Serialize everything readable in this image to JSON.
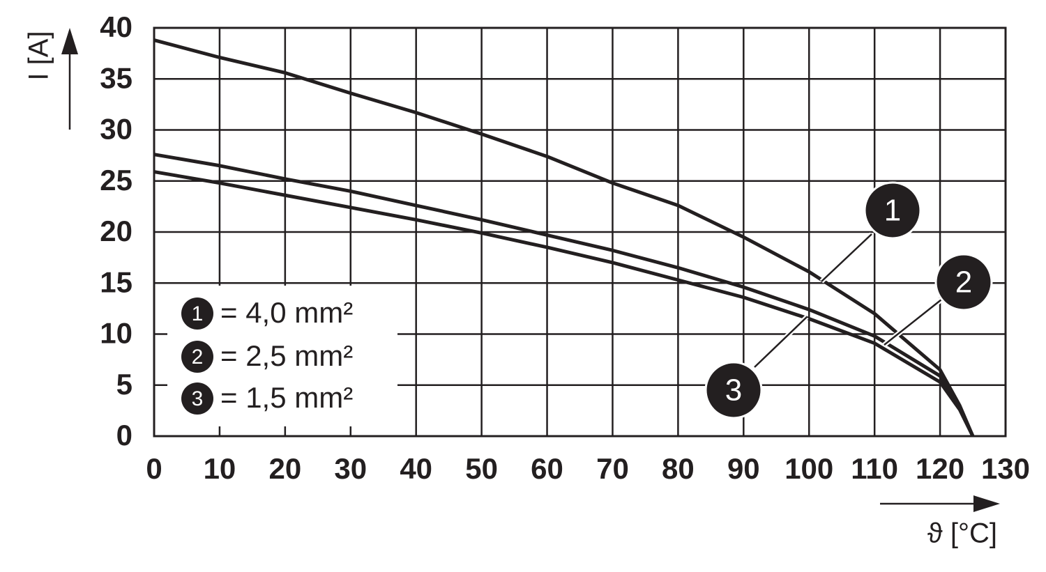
{
  "chart_data": {
    "type": "line",
    "x_label": "ϑ [°C]",
    "y_label": "I [A]",
    "x": [
      0,
      10,
      20,
      30,
      40,
      50,
      60,
      70,
      80,
      90,
      100,
      110,
      120,
      123,
      125
    ],
    "series": [
      {
        "name": "1",
        "label": "= 4,0 mm²",
        "color": "#231f20",
        "values": [
          38.8,
          37.1,
          35.6,
          33.6,
          31.7,
          29.6,
          27.4,
          24.8,
          22.6,
          19.5,
          16.1,
          12.0,
          6.5,
          3.0,
          0
        ]
      },
      {
        "name": "2",
        "label": "= 2,5 mm²",
        "color": "#231f20",
        "values": [
          27.6,
          26.5,
          25.2,
          24.0,
          22.6,
          21.2,
          19.7,
          18.2,
          16.5,
          14.6,
          12.4,
          9.8,
          5.9,
          2.8,
          0
        ]
      },
      {
        "name": "3",
        "label": "= 1,5 mm²",
        "color": "#231f20",
        "values": [
          25.9,
          24.8,
          23.6,
          22.4,
          21.2,
          19.9,
          18.5,
          17.0,
          15.3,
          13.6,
          11.5,
          9.1,
          5.3,
          2.6,
          0
        ]
      }
    ],
    "xlim": [
      0,
      130
    ],
    "ylim": [
      0,
      40
    ],
    "xticks": [
      0,
      10,
      20,
      30,
      40,
      50,
      60,
      70,
      80,
      90,
      100,
      110,
      120,
      130
    ],
    "yticks": [
      0,
      5,
      10,
      15,
      20,
      25,
      30,
      35,
      40
    ],
    "grid": true
  }
}
